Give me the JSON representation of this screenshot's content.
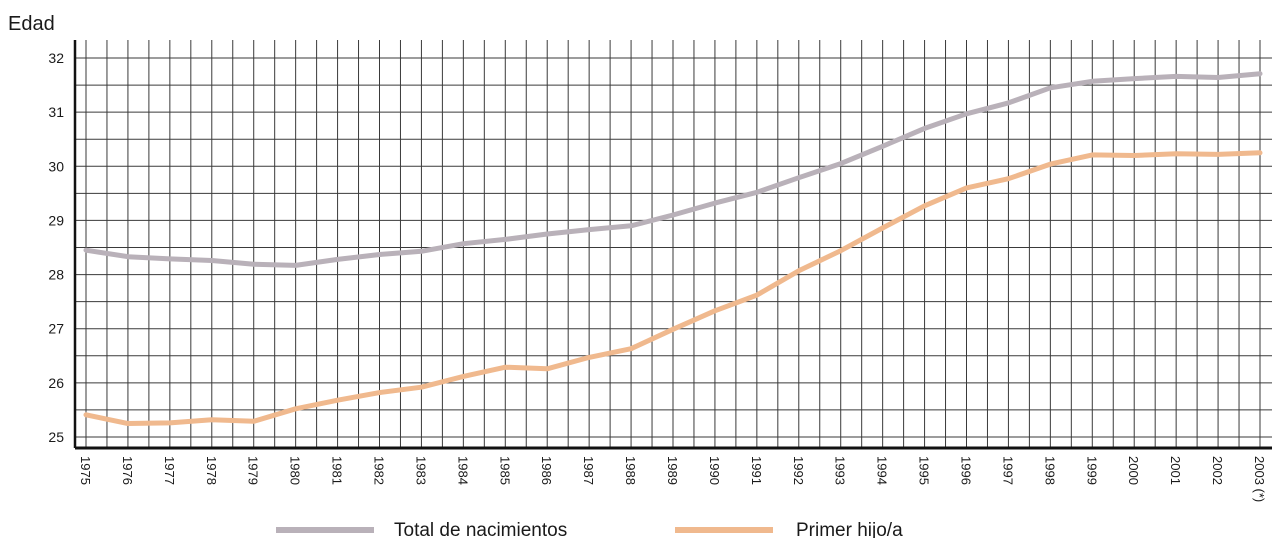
{
  "chart_data": {
    "type": "line",
    "ylabel": "Edad",
    "xlabel": "",
    "ylim": [
      25,
      32
    ],
    "yticks": [
      25,
      26,
      27,
      28,
      29,
      30,
      31,
      32
    ],
    "x": [
      "1975",
      "1976",
      "1977",
      "1978",
      "1979",
      "1980",
      "1981",
      "1982",
      "1983",
      "1984",
      "1985",
      "1986",
      "1987",
      "1988",
      "1989",
      "1990",
      "1991",
      "1992",
      "1993",
      "1994",
      "1995",
      "1996",
      "1997",
      "1998",
      "1999",
      "2000",
      "2001",
      "2002",
      "2003 (*)"
    ],
    "grid": true,
    "legend_position": "bottom",
    "series": [
      {
        "name": "Total de nacimientos",
        "color": "#b9b1b9",
        "values": [
          28.45,
          28.33,
          28.29,
          28.26,
          28.19,
          28.17,
          28.28,
          28.37,
          28.43,
          28.57,
          28.65,
          28.75,
          28.83,
          28.9,
          29.1,
          29.32,
          29.52,
          29.79,
          30.05,
          30.37,
          30.7,
          30.97,
          31.17,
          31.45,
          31.57,
          31.62,
          31.66,
          31.64,
          31.71
        ]
      },
      {
        "name": "Primer hijo/a",
        "color": "#f0b98e",
        "values": [
          25.41,
          25.25,
          25.26,
          25.32,
          25.29,
          25.52,
          25.68,
          25.82,
          25.92,
          26.12,
          26.29,
          26.26,
          26.47,
          26.63,
          26.99,
          27.33,
          27.62,
          28.07,
          28.44,
          28.86,
          29.27,
          29.6,
          29.77,
          30.04,
          30.21,
          30.2,
          30.23,
          30.22,
          30.25
        ]
      }
    ]
  }
}
